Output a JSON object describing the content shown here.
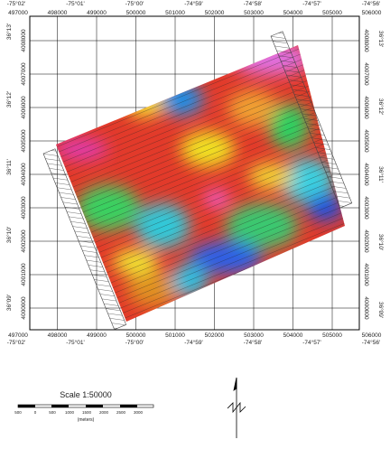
{
  "map": {
    "eastings": [
      "497000",
      "498000",
      "499000",
      "500000",
      "501000",
      "502000",
      "503000",
      "504000",
      "505000",
      "506000"
    ],
    "northings": [
      "4008000",
      "4007000",
      "4006000",
      "4005000",
      "4004000",
      "4003000",
      "4002000",
      "4001000",
      "4000000"
    ],
    "longitudes": [
      "-75°02'",
      "-75°01'",
      "-75°00'",
      "-74°59'",
      "-74°58'",
      "-74°57'",
      "-74°56'"
    ],
    "latitudes": [
      "36°13'",
      "36°12'",
      "36°11'",
      "36°10'",
      "36°09'"
    ],
    "scale_title": "Scale 1:50000",
    "scale_ticks": [
      "500",
      "0",
      "500",
      "1000",
      "1500",
      "2000",
      "2500",
      "3000"
    ],
    "scale_unit": "(meters)"
  }
}
